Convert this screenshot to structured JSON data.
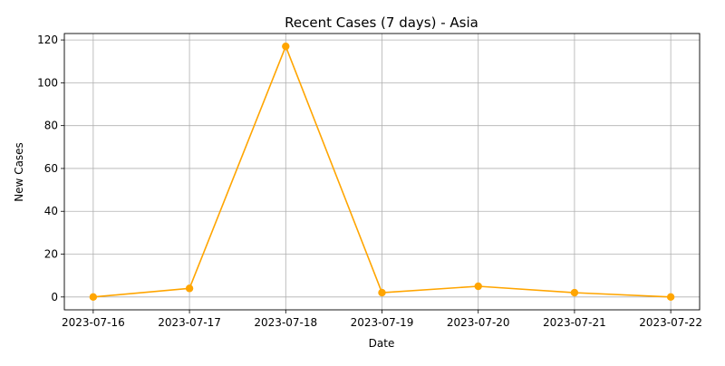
{
  "chart_data": {
    "type": "line",
    "title": "Recent Cases (7 days) - Asia",
    "xlabel": "Date",
    "ylabel": "New Cases",
    "categories": [
      "2023-07-16",
      "2023-07-17",
      "2023-07-18",
      "2023-07-19",
      "2023-07-20",
      "2023-07-21",
      "2023-07-22"
    ],
    "series": [
      {
        "values": [
          0,
          4,
          117,
          2,
          5,
          2,
          0
        ],
        "color": "#FFA500",
        "marker": "circle"
      }
    ],
    "ylim": [
      -6,
      123
    ],
    "yticks": [
      0,
      20,
      40,
      60,
      80,
      100,
      120
    ],
    "grid": true,
    "legend": "none"
  }
}
